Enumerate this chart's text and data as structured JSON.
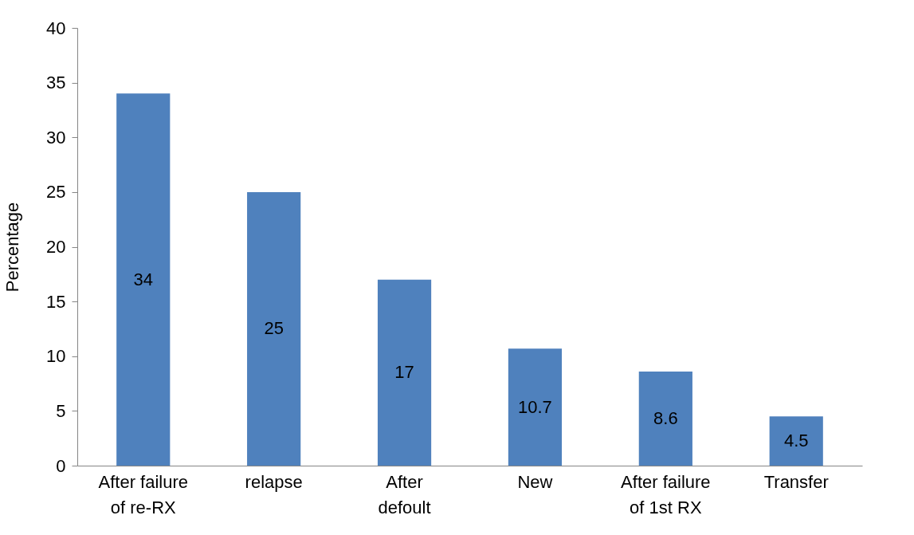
{
  "chart_data": {
    "type": "bar",
    "ylabel": "Percentage",
    "categories": [
      "After failure\nof re-RX",
      "relapse",
      "After\ndefoult",
      "New",
      "After failure\nof 1st RX",
      "Transfer"
    ],
    "values": [
      34,
      25,
      17,
      10.7,
      8.6,
      4.5
    ],
    "color": "#4f81bd",
    "data_labels": true,
    "ylim": [
      0,
      40
    ],
    "yticks": [
      0,
      5,
      10,
      15,
      20,
      25,
      30,
      35,
      40
    ],
    "grid": false
  }
}
